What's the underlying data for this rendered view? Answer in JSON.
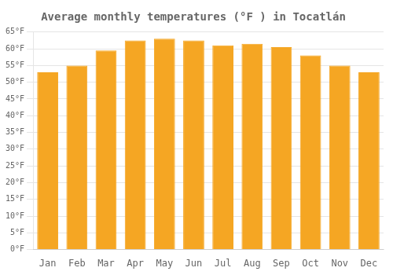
{
  "chart_data": {
    "type": "bar",
    "title": "Average monthly temperatures (°F ) in Tocatlán",
    "categories": [
      "Jan",
      "Feb",
      "Mar",
      "Apr",
      "May",
      "Jun",
      "Jul",
      "Aug",
      "Sep",
      "Oct",
      "Nov",
      "Dec"
    ],
    "values": [
      53,
      55,
      59.5,
      62.5,
      63,
      62.5,
      61,
      61.5,
      60.5,
      58,
      55,
      53
    ],
    "color": "#F5A623",
    "ylim": [
      0,
      65
    ],
    "yticks": [
      {
        "value": 0,
        "label": "0°F"
      },
      {
        "value": 5,
        "label": "5°F"
      },
      {
        "value": 10,
        "label": "10°F"
      },
      {
        "value": 15,
        "label": "15°F"
      },
      {
        "value": 20,
        "label": "20°F"
      },
      {
        "value": 25,
        "label": "25°F"
      },
      {
        "value": 30,
        "label": "30°F"
      },
      {
        "value": 35,
        "label": "35°F"
      },
      {
        "value": 40,
        "label": "40°F"
      },
      {
        "value": 45,
        "label": "45°F"
      },
      {
        "value": 50,
        "label": "50°F"
      },
      {
        "value": 55,
        "label": "55°F"
      },
      {
        "value": 60,
        "label": "60°F"
      },
      {
        "value": 65,
        "label": "65°F"
      }
    ],
    "grid": true
  }
}
